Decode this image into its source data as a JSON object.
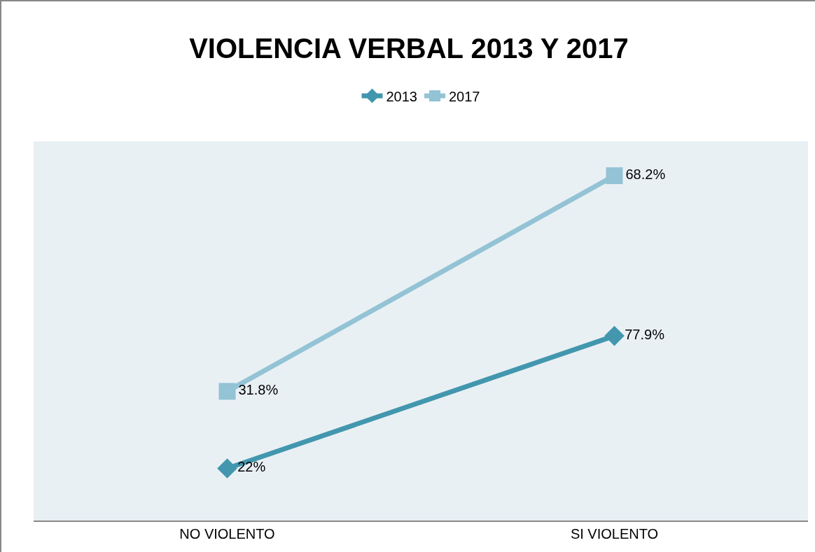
{
  "chart_data": {
    "type": "line",
    "title": "VIOLENCIA VERBAL 2013 Y 2017",
    "categories": [
      "NO VIOLENTO",
      "SI VIOLENTO"
    ],
    "series": [
      {
        "name": "2013",
        "color": "#4297ae",
        "values": [
          22,
          77.9
        ],
        "value_labels": [
          "22%",
          "77.9%"
        ],
        "marker": "diamond"
      },
      {
        "name": "2017",
        "color": "#93c3d5",
        "values": [
          31.8,
          68.2
        ],
        "value_labels": [
          "31.8%",
          "68.2%"
        ],
        "marker": "square",
        "axis": "y2"
      }
    ],
    "ylim": [
      0,
      160
    ],
    "y2lim": [
      10,
      74
    ],
    "tick_labels": "x",
    "grid": false,
    "legend": "top"
  }
}
